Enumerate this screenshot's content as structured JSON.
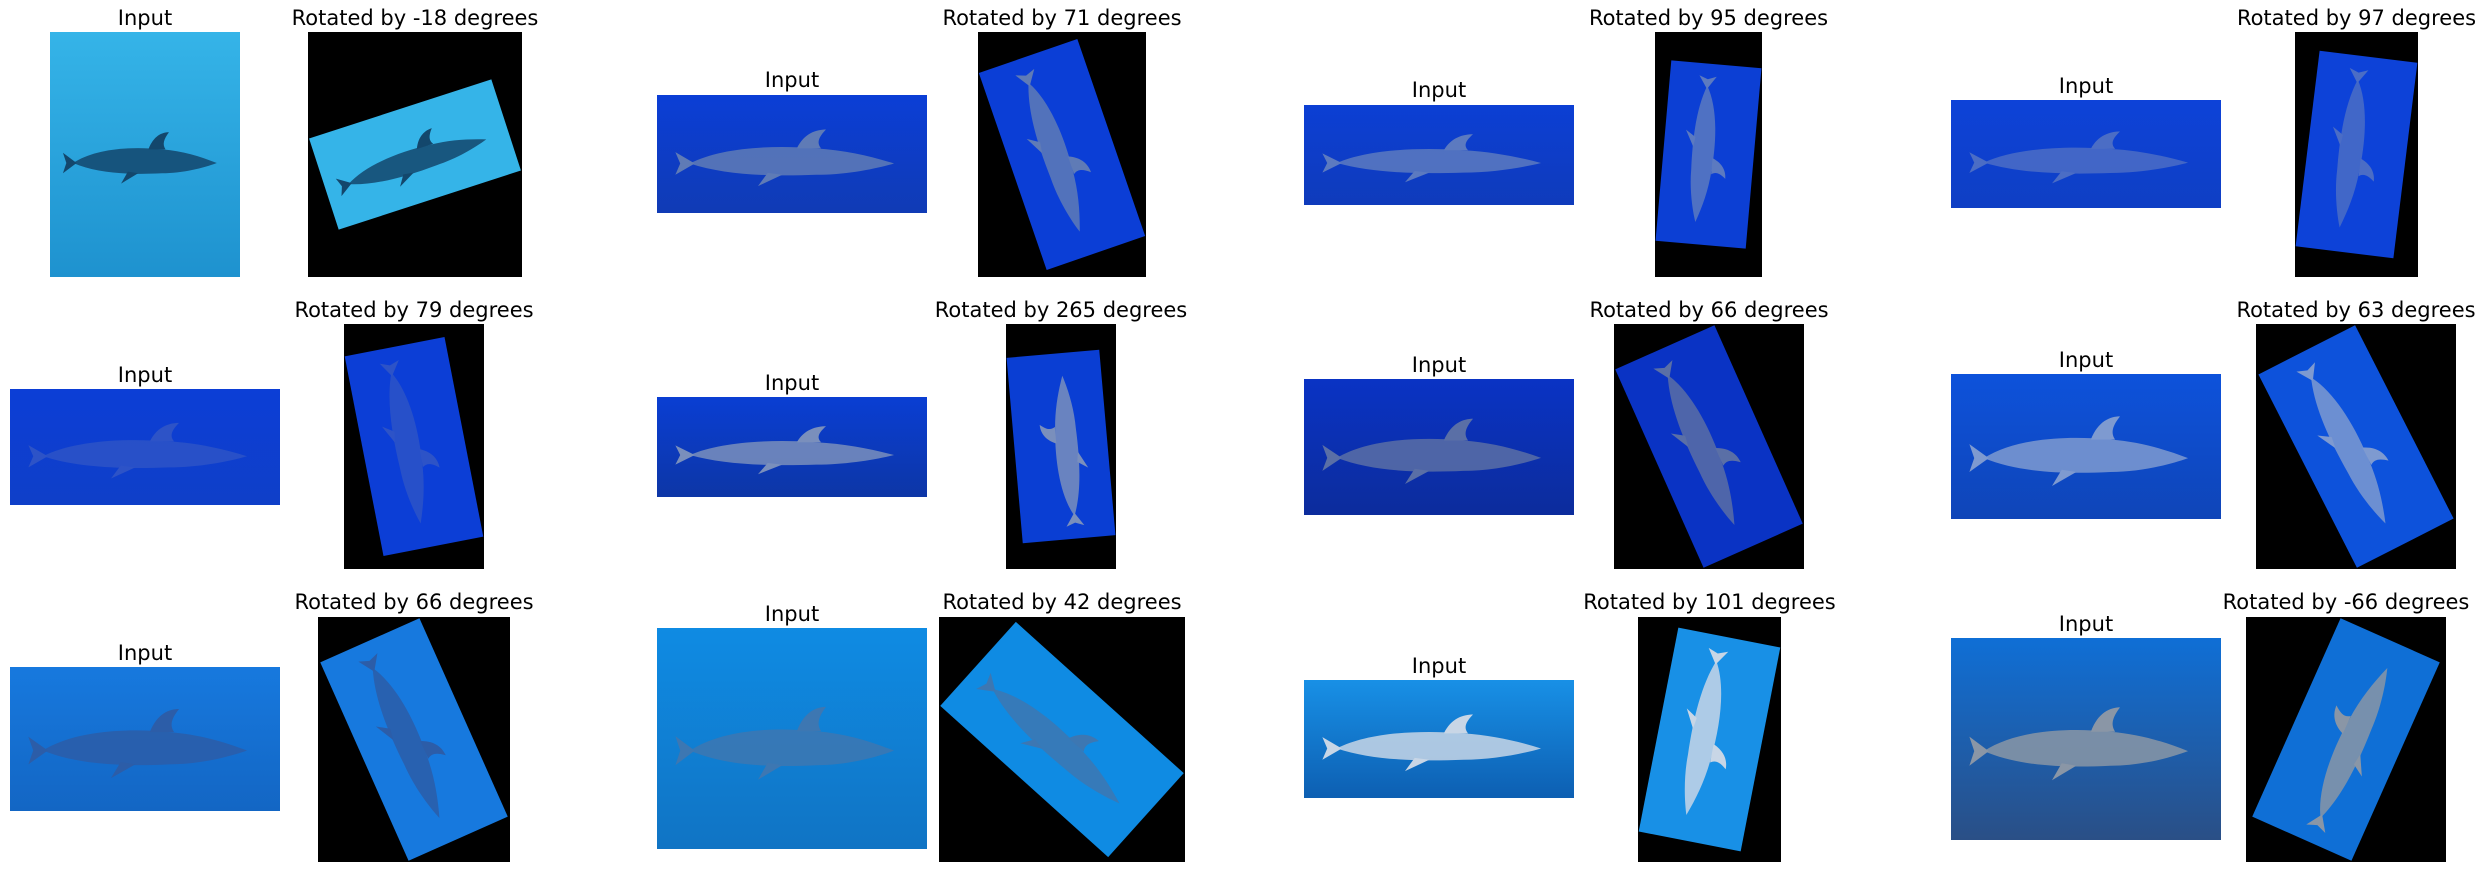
{
  "grid": [
    {
      "input_title": "Input",
      "output_title": "Rotated by -18 degrees",
      "bg": "#35b4e8",
      "mid": "#1e92cf",
      "dark": "#13476c"
    },
    {
      "input_title": "Input",
      "output_title": "Rotated by 71 degrees",
      "bg": "#0b3ed6",
      "mid": "#103bb5",
      "dark": "#5f7bb6"
    },
    {
      "input_title": "Input",
      "output_title": "Rotated by 95 degrees",
      "bg": "#0c3fd4",
      "mid": "#0f3bbb",
      "dark": "#5c7ac0"
    },
    {
      "input_title": "Input",
      "output_title": "Rotated by 97 degrees",
      "bg": "#0d42d8",
      "mid": "#0f3fc4",
      "dark": "#4b6dc5"
    },
    {
      "input_title": "Input",
      "output_title": "Rotated by 79 degrees",
      "bg": "#0c3ed6",
      "mid": "#0f3fc8",
      "dark": "#2d53c7"
    },
    {
      "input_title": "Input",
      "output_title": "Rotated by 265 degrees",
      "bg": "#0a3ed3",
      "mid": "#0d36a6",
      "dark": "#7a8fbc"
    },
    {
      "input_title": "Input",
      "output_title": "Rotated by 66 degrees",
      "bg": "#0a33c4",
      "mid": "#0c2c9c",
      "dark": "#5a6fa6"
    },
    {
      "input_title": "Input",
      "output_title": "Rotated by 63 degrees",
      "bg": "#0d52db",
      "mid": "#0f45b8",
      "dark": "#7e9ad0"
    },
    {
      "input_title": "Input",
      "output_title": "Rotated by 66 degrees",
      "bg": "#1779de",
      "mid": "#1366c4",
      "dark": "#2c5da8"
    },
    {
      "input_title": "Input",
      "output_title": "Rotated by 42 degrees",
      "bg": "#0f8be3",
      "mid": "#1074c4",
      "dark": "#3d77b2"
    },
    {
      "input_title": "Input",
      "output_title": "Rotated by 101 degrees",
      "bg": "#1890e6",
      "mid": "#0d5fb2",
      "dark": "#c8d6e6"
    },
    {
      "input_title": "Input",
      "output_title": "Rotated by -66 degrees",
      "bg": "#0f6fd6",
      "mid": "#2a4f86",
      "dark": "#8a96a6"
    }
  ]
}
